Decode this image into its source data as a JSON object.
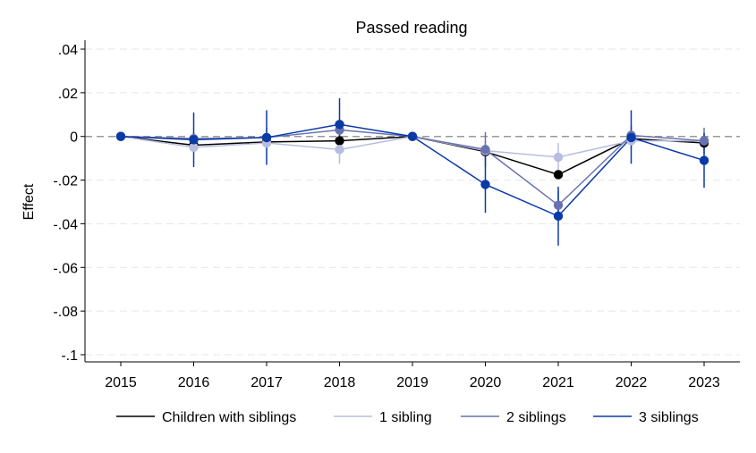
{
  "chart_data": {
    "type": "line",
    "title": "Passed reading",
    "xlabel": "",
    "ylabel": "Effect",
    "ylim": [
      -0.1,
      0.04
    ],
    "yticks": [
      0.04,
      0.02,
      0,
      -0.02,
      -0.04,
      -0.06,
      -0.08,
      -0.1
    ],
    "ytick_labels": [
      ".04",
      ".02",
      "0",
      "-.02",
      "-.04",
      "-.06",
      "-.08",
      "-.1"
    ],
    "x": [
      2015,
      2016,
      2017,
      2018,
      2019,
      2020,
      2021,
      2022,
      2023
    ],
    "x_labels": [
      "2015",
      "2016",
      "2017",
      "2018",
      "2019",
      "2020",
      "2021",
      "2022",
      "2023"
    ],
    "reference_line": 0,
    "grid": true,
    "legend_position": "bottom",
    "series": [
      {
        "name": "Children with siblings",
        "color": "#000000",
        "values": [
          0,
          -0.004,
          -0.0025,
          -0.002,
          0,
          -0.007,
          -0.0175,
          -0.001,
          -0.003
        ],
        "ci_low": null,
        "ci_high": null
      },
      {
        "name": "1 sibling",
        "color": "#b8bde0",
        "values": [
          0,
          -0.005,
          -0.003,
          -0.006,
          0,
          -0.0065,
          -0.0095,
          -0.002,
          -0.002
        ],
        "ci_low": [
          0,
          -0.007,
          -0.006,
          -0.0125,
          0,
          -0.011,
          -0.016,
          -0.006,
          -0.006
        ],
        "ci_high": [
          0,
          -0.003,
          0,
          0.0005,
          0,
          -0.002,
          -0.003,
          0.002,
          0.002
        ]
      },
      {
        "name": "2 siblings",
        "color": "#6872b0",
        "values": [
          0,
          -0.001,
          -0.0005,
          0.003,
          0,
          -0.006,
          -0.0315,
          0.0005,
          -0.002
        ],
        "ci_low": [
          0,
          -0.004,
          -0.005,
          -0.002,
          0,
          -0.014,
          -0.038,
          -0.004,
          -0.008
        ],
        "ci_high": [
          0,
          0.002,
          0.004,
          0.008,
          0,
          0.002,
          -0.025,
          0.005,
          0.004
        ]
      },
      {
        "name": "3 siblings",
        "color": "#0a3aa8",
        "values": [
          0,
          -0.0015,
          -0.0005,
          0.0055,
          0,
          -0.022,
          -0.0365,
          -0.0005,
          -0.011
        ],
        "ci_low": [
          0,
          -0.014,
          -0.013,
          -0.0065,
          0,
          -0.035,
          -0.05,
          -0.0125,
          -0.0235
        ],
        "ci_high": [
          0,
          0.011,
          0.012,
          0.0175,
          0,
          -0.009,
          -0.023,
          0.012,
          0.0015
        ]
      }
    ]
  }
}
